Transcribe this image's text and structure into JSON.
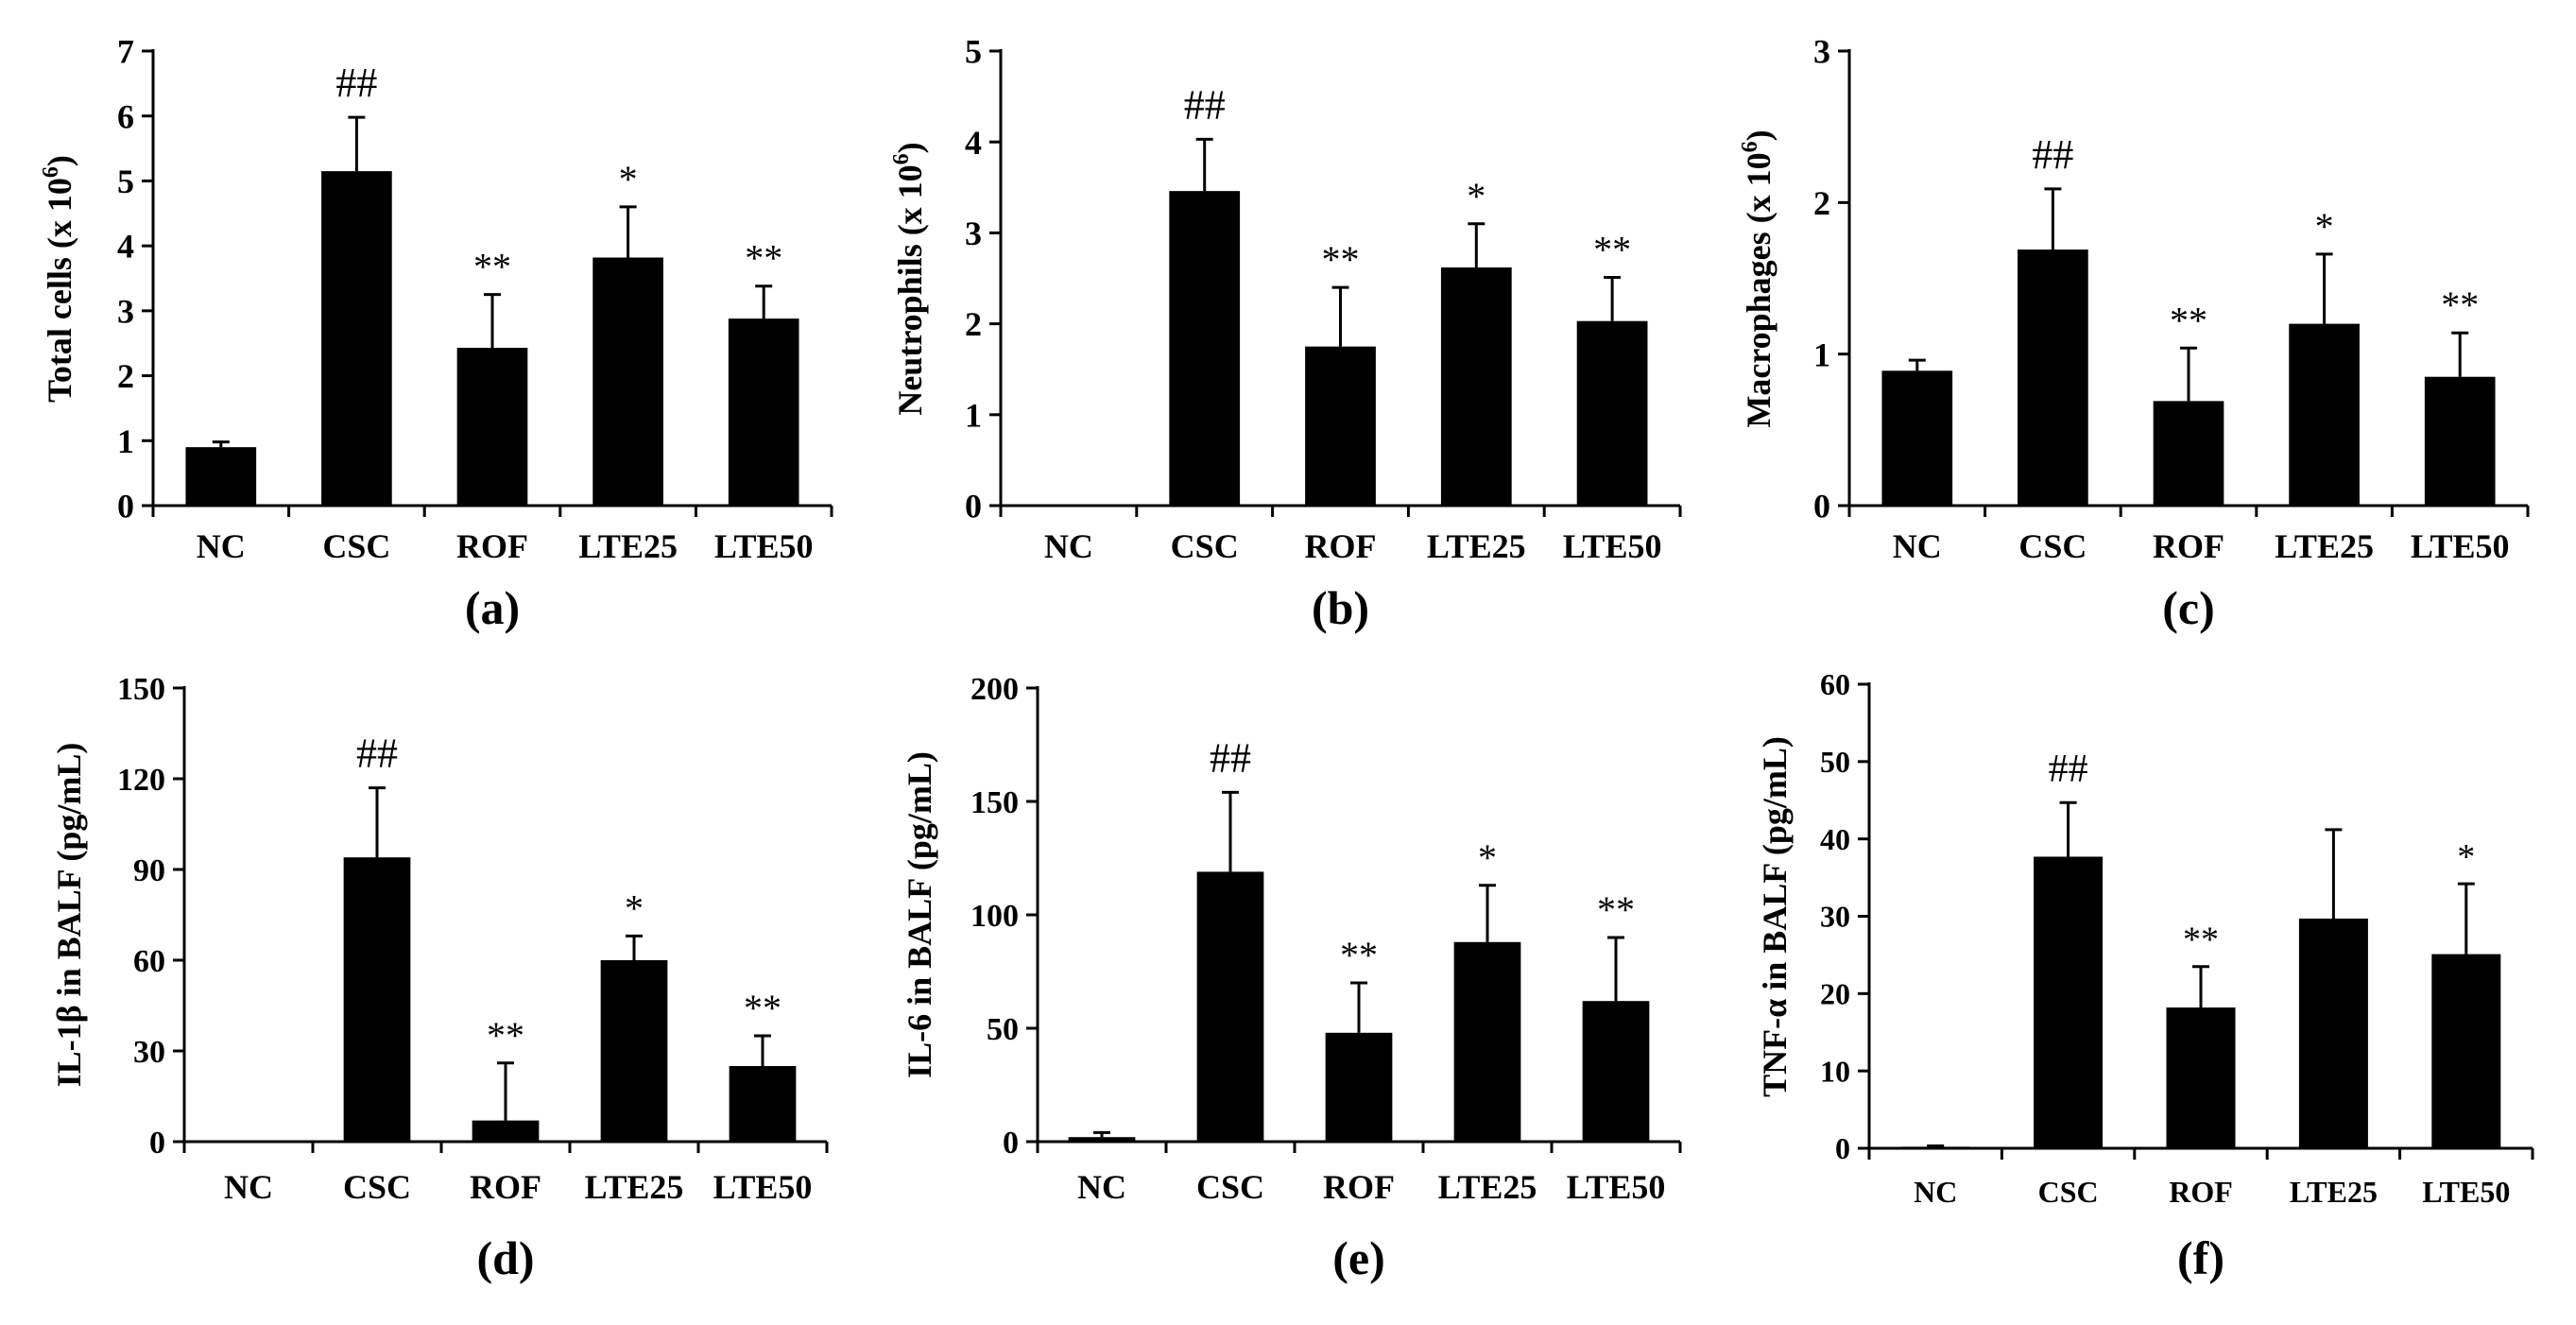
{
  "figure": {
    "categories": [
      "NC",
      "CSC",
      "ROF",
      "LTE25",
      "LTE50"
    ]
  },
  "chart_data": [
    {
      "type": "bar",
      "panel_label": "(a)",
      "ylabel": "Total cells (x 10",
      "ylabel_sup": "6",
      "ylabel_end": ")",
      "categories": [
        "NC",
        "CSC",
        "ROF",
        "LTE25",
        "LTE50"
      ],
      "values": [
        0.9,
        5.15,
        2.43,
        3.82,
        2.88
      ],
      "errors": [
        0.08,
        0.83,
        0.82,
        0.78,
        0.5
      ],
      "significance": [
        "",
        "##",
        "**",
        "*",
        "**"
      ],
      "ylim": [
        0,
        7
      ],
      "yticks": [
        0,
        1,
        2,
        3,
        4,
        5,
        6,
        7
      ]
    },
    {
      "type": "bar",
      "panel_label": "(b)",
      "ylabel": "Neutrophils (x 10",
      "ylabel_sup": "6",
      "ylabel_end": ")",
      "categories": [
        "NC",
        "CSC",
        "ROF",
        "LTE25",
        "LTE50"
      ],
      "values": [
        0,
        3.46,
        1.75,
        2.62,
        2.03
      ],
      "errors": [
        0,
        0.57,
        0.65,
        0.48,
        0.48
      ],
      "significance": [
        "",
        "##",
        "**",
        "*",
        "**"
      ],
      "ylim": [
        0,
        5
      ],
      "yticks": [
        0,
        1,
        2,
        3,
        4,
        5
      ]
    },
    {
      "type": "bar",
      "panel_label": "(c)",
      "ylabel": "Macrophages (x 10",
      "ylabel_sup": "6",
      "ylabel_end": ")",
      "categories": [
        "NC",
        "CSC",
        "ROF",
        "LTE25",
        "LTE50"
      ],
      "values": [
        0.89,
        1.69,
        0.69,
        1.2,
        0.85
      ],
      "errors": [
        0.07,
        0.4,
        0.35,
        0.46,
        0.29
      ],
      "significance": [
        "",
        "##",
        "**",
        "*",
        "**"
      ],
      "ylim": [
        0,
        3
      ],
      "yticks": [
        0,
        1,
        2,
        3
      ]
    },
    {
      "type": "bar",
      "panel_label": "(d)",
      "ylabel": "IL-1β in BALF (pg/mL)",
      "ylabel_sup": "",
      "ylabel_end": "",
      "categories": [
        "NC",
        "CSC",
        "ROF",
        "LTE25",
        "LTE50"
      ],
      "values": [
        0,
        94,
        7,
        60,
        25
      ],
      "errors": [
        0,
        23,
        19,
        8,
        10
      ],
      "significance": [
        "",
        "##",
        "**",
        "*",
        "**"
      ],
      "ylim": [
        0,
        150
      ],
      "yticks": [
        0,
        30,
        60,
        90,
        120,
        150
      ]
    },
    {
      "type": "bar",
      "panel_label": "(e)",
      "ylabel": "IL-6 in BALF (pg/mL)",
      "ylabel_sup": "",
      "ylabel_end": "",
      "categories": [
        "NC",
        "CSC",
        "ROF",
        "LTE25",
        "LTE50"
      ],
      "values": [
        2,
        119,
        48,
        88,
        62
      ],
      "errors": [
        2,
        35,
        22,
        25,
        28
      ],
      "significance": [
        "",
        "##",
        "**",
        "*",
        "**"
      ],
      "ylim": [
        0,
        200
      ],
      "yticks": [
        0,
        50,
        100,
        150,
        200
      ]
    },
    {
      "type": "bar",
      "panel_label": "(f)",
      "ylabel": "TNF-α in BALF (pg/mL)",
      "ylabel_sup": "",
      "ylabel_end": "",
      "categories": [
        "NC",
        "CSC",
        "ROF",
        "LTE25",
        "LTE50"
      ],
      "values": [
        0.2,
        37.7,
        18.2,
        29.7,
        25.1
      ],
      "errors": [
        0.1,
        7,
        5.3,
        11.5,
        9.1
      ],
      "significance": [
        "",
        "##",
        "**",
        "",
        "*"
      ],
      "ylim": [
        0,
        60
      ],
      "yticks": [
        0,
        10,
        20,
        30,
        40,
        50,
        60
      ]
    }
  ]
}
